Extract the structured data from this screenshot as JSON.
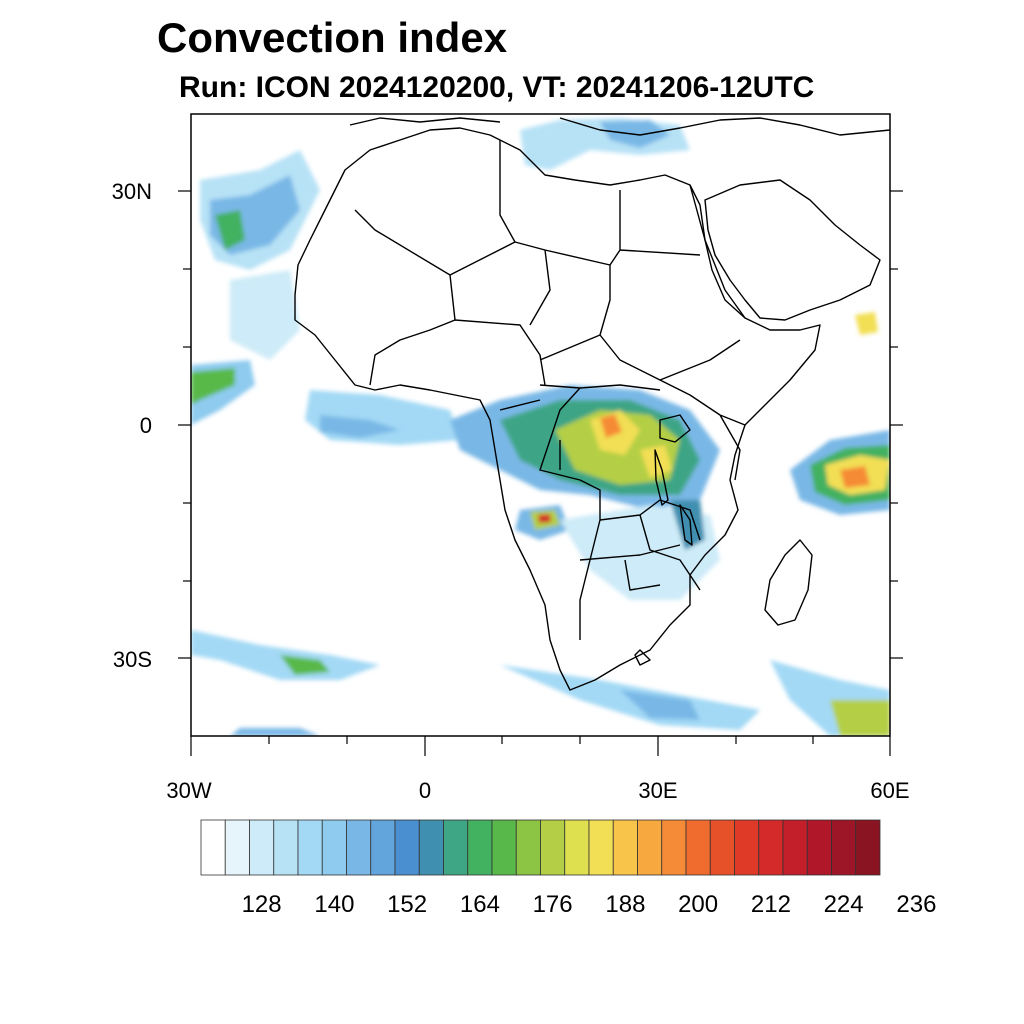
{
  "title": "Convection index",
  "subtitle": "Run: ICON 2024120200,  VT: 20241206-12UTC",
  "map": {
    "lon_range": [
      -30,
      60
    ],
    "lat_range": [
      -40,
      40
    ],
    "y_tick_labels": [
      "30N",
      "0",
      "30S"
    ],
    "x_tick_labels": [
      "30W",
      "0",
      "30E",
      "60E"
    ],
    "background": "#ffffff",
    "border_color": "#000000"
  },
  "colorbar": {
    "labels": [
      "128",
      "140",
      "152",
      "164",
      "176",
      "188",
      "200",
      "212",
      "224",
      "236"
    ],
    "colors": [
      "#ffffff",
      "#e6f5fc",
      "#cdebf8",
      "#b7e2f6",
      "#a3d9f5",
      "#8ecbef",
      "#79b8e6",
      "#62a4dc",
      "#4a8fcf",
      "#3f8fb0",
      "#3ea585",
      "#42b160",
      "#58b94a",
      "#8cc444",
      "#b4cf45",
      "#dfe050",
      "#f2df55",
      "#f8c449",
      "#f7a83f",
      "#f58b36",
      "#ef6c2e",
      "#e6512a",
      "#df3a28",
      "#d42a2a",
      "#c21f2a",
      "#b0182a",
      "#9d1627",
      "#8a1421"
    ]
  },
  "features": {
    "land_fill": "#ffffff",
    "field_colors": {
      "light": "#b7e2f6",
      "medium": "#79b8e6",
      "teal": "#3f8fb0",
      "green": "#42b160",
      "lime": "#b4cf45",
      "yellow": "#f2df55",
      "orange": "#f58b36",
      "red": "#d42a2a"
    }
  }
}
